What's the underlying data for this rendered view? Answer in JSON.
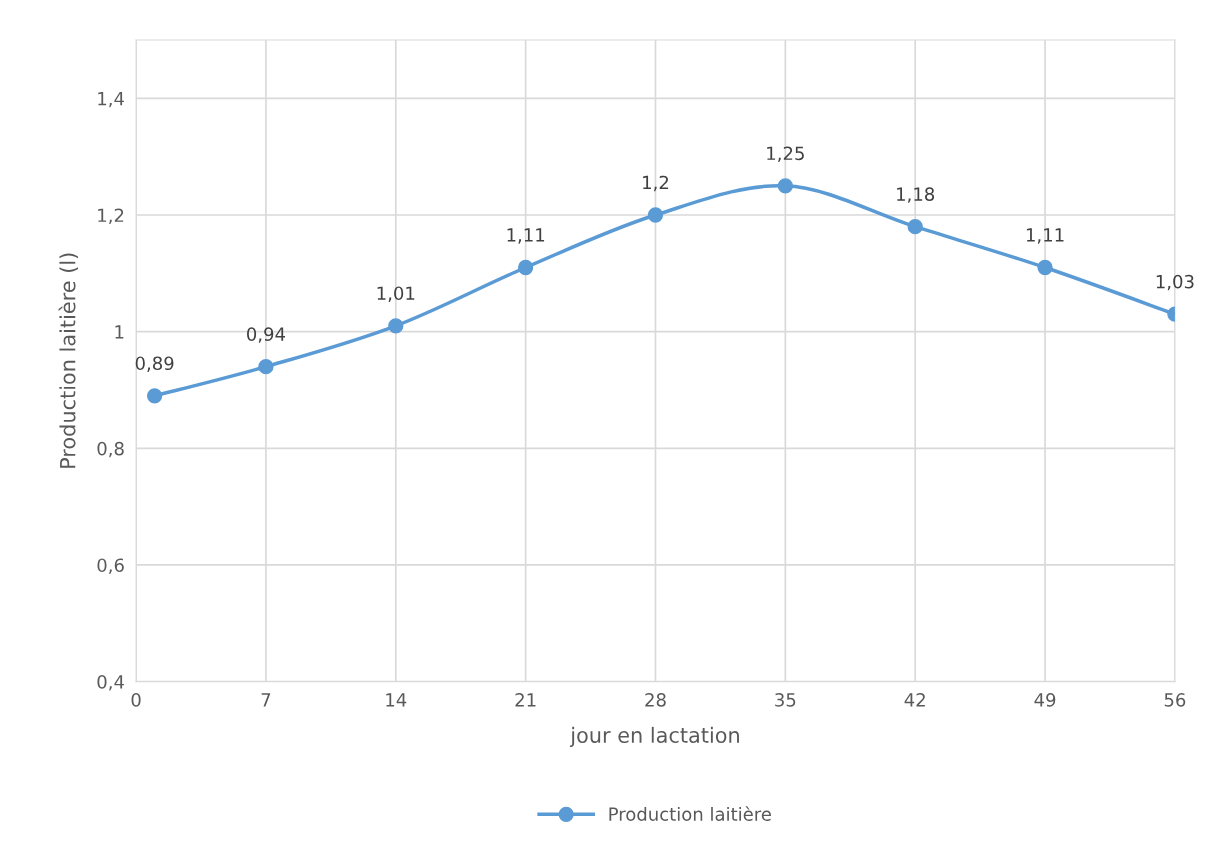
{
  "chart_data": {
    "type": "line",
    "xlabel": "jour en lactation",
    "ylabel": "Production laitière (l)",
    "x": [
      1,
      7,
      14,
      21,
      28,
      35,
      42,
      49,
      56
    ],
    "series": [
      {
        "name": "Production laitière",
        "color": "#5b9bd5",
        "values": [
          0.89,
          0.94,
          1.01,
          1.11,
          1.2,
          1.25,
          1.18,
          1.11,
          1.03
        ],
        "value_labels": [
          "0,89",
          "0,94",
          "1,01",
          "1,11",
          "1,2",
          "1,25",
          "1,18",
          "1,11",
          "1,03"
        ]
      }
    ],
    "xlim": [
      0,
      56
    ],
    "xticks": [
      0,
      7,
      14,
      21,
      28,
      35,
      42,
      49,
      56
    ],
    "ylim": [
      0.4,
      1.5
    ],
    "yticks": [
      {
        "value": 0.4,
        "label": "0,4"
      },
      {
        "value": 0.6,
        "label": "0,6"
      },
      {
        "value": 0.8,
        "label": "0,8"
      },
      {
        "value": 1,
        "label": "1"
      },
      {
        "value": 1.2,
        "label": "1,2"
      },
      {
        "value": 1.4,
        "label": "1,4"
      }
    ],
    "grid": true,
    "legend": "bottom",
    "marker": "circle",
    "line_style": "solid"
  }
}
